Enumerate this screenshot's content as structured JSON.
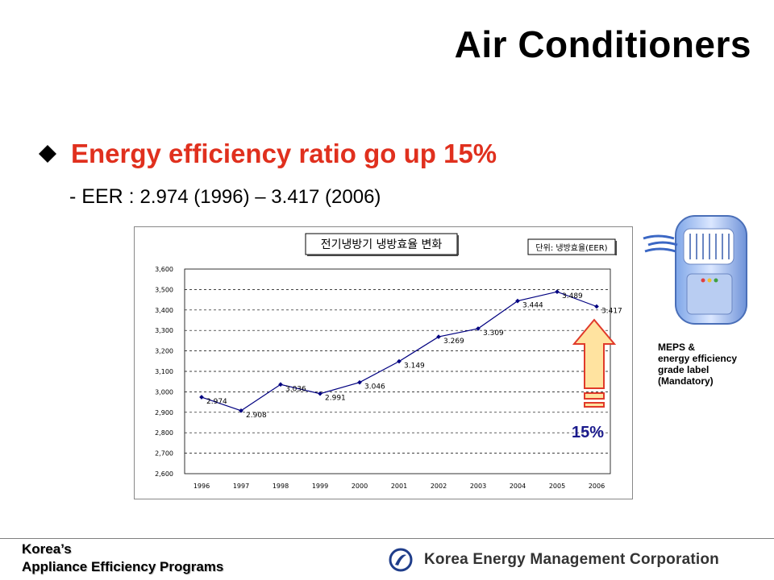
{
  "slide": {
    "title": "Air Conditioners",
    "bullet": "Energy efficiency ratio go up 15%",
    "sub_prefix": "- EER : ",
    "sub_values": "2.974 (1996) – 3.417 (2006)"
  },
  "side_note": {
    "lines": [
      "MEPS &",
      "energy efficiency",
      "grade label",
      "(Mandatory)"
    ]
  },
  "footer": {
    "left_line1": "Korea’s",
    "left_line2": "Appliance Efficiency Programs",
    "org_name": "Korea Energy Management Corporation"
  },
  "colors": {
    "title": "#000000",
    "bullet": "#e0301e",
    "series": "#000080",
    "arrow_fill": "#ffe3a0",
    "arrow_stroke": "#e03a2a",
    "percent_text": "#1a1a8c"
  },
  "icons": {
    "bullet": "diamond-icon",
    "illustration": "air-conditioner-icon",
    "arrow": "up-arrow-icon",
    "logo": "kemco-logo-icon"
  },
  "chart_data": {
    "type": "line",
    "title": "전기냉방기 냉방효율 변화",
    "unit_label": "단위: 냉방효율(EER)",
    "categories": [
      "1996",
      "1997",
      "1998",
      "1999",
      "2000",
      "2001",
      "2002",
      "2003",
      "2004",
      "2005",
      "2006"
    ],
    "values": [
      2.974,
      2.908,
      3.036,
      2.991,
      3.046,
      3.149,
      3.269,
      3.309,
      3.444,
      3.489,
      3.417
    ],
    "point_labels": [
      "2.974",
      "2.908",
      "3.036",
      "2.991",
      "3.046",
      "3.149",
      "3.269",
      "3.309",
      "3.444",
      "3.489",
      "3.417"
    ],
    "yticks": [
      "3,600",
      "3,500",
      "3,400",
      "3,300",
      "3,200",
      "3,100",
      "3,000",
      "2,900",
      "2,800",
      "2,700",
      "2,600"
    ],
    "ylim": [
      2.6,
      3.6
    ],
    "grid": true,
    "annotation": "15%"
  }
}
